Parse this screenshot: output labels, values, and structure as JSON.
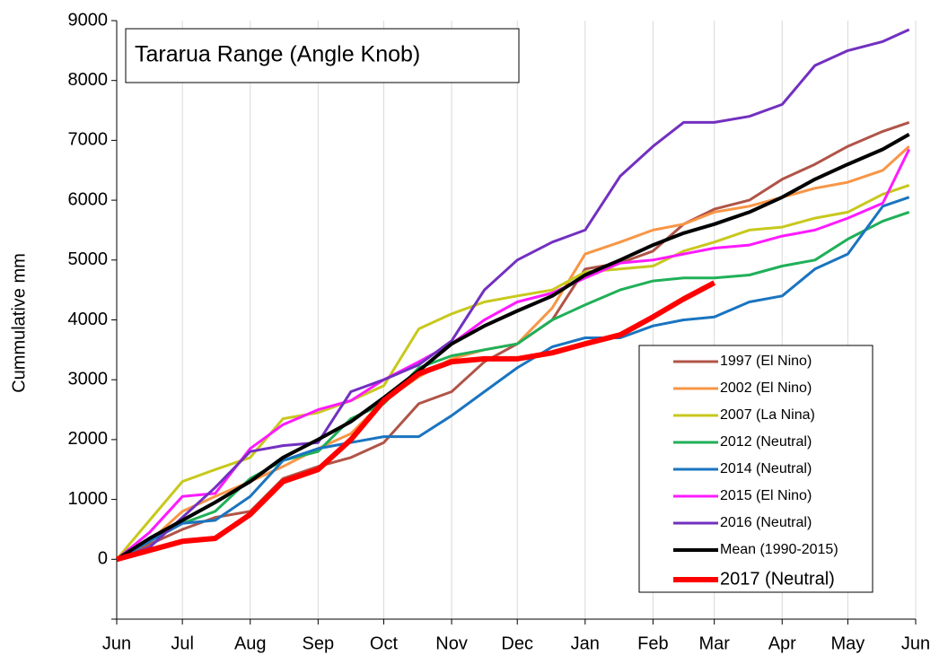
{
  "chart_data": {
    "type": "line",
    "title": "Tararua Range (Angle Knob)",
    "y_label": "Cummulative mm",
    "x": [
      0,
      15,
      30,
      45,
      61,
      76,
      92,
      107,
      122,
      138,
      153,
      168,
      183,
      199,
      214,
      230,
      245,
      259,
      273,
      289,
      304,
      319,
      334,
      350,
      362
    ],
    "xlim": [
      0,
      365
    ],
    "xticks": [
      {
        "value": 0,
        "label": "Jun"
      },
      {
        "value": 30,
        "label": "Jul"
      },
      {
        "value": 61,
        "label": "Aug"
      },
      {
        "value": 92,
        "label": "Sep"
      },
      {
        "value": 122,
        "label": "Oct"
      },
      {
        "value": 153,
        "label": "Nov"
      },
      {
        "value": 183,
        "label": "Dec"
      },
      {
        "value": 214,
        "label": "Jan"
      },
      {
        "value": 245,
        "label": "Feb"
      },
      {
        "value": 273,
        "label": "Mar"
      },
      {
        "value": 304,
        "label": "Apr"
      },
      {
        "value": 334,
        "label": "May"
      },
      {
        "value": 365,
        "label": "Jun"
      }
    ],
    "ylim": [
      -1000,
      9000
    ],
    "yticks": [
      0,
      1000,
      2000,
      3000,
      4000,
      5000,
      6000,
      7000,
      8000,
      9000
    ],
    "grid": "x",
    "legend": "lower right",
    "series": [
      {
        "name": "1997 (El Nino)",
        "color": "#b05448",
        "line_width": 3,
        "values": [
          0,
          250,
          500,
          700,
          800,
          1350,
          1550,
          1700,
          1950,
          2600,
          2800,
          3300,
          3600,
          4000,
          4850,
          4950,
          5150,
          5600,
          5850,
          6000,
          6350,
          6600,
          6900,
          7150,
          7300
        ]
      },
      {
        "name": "2002 (El Nino)",
        "color": "#f79646",
        "line_width": 3,
        "values": [
          0,
          300,
          800,
          1050,
          1300,
          1550,
          1850,
          2100,
          2650,
          3050,
          3350,
          3500,
          3600,
          4200,
          5100,
          5300,
          5500,
          5600,
          5800,
          5900,
          6050,
          6200,
          6300,
          6500,
          6900
        ]
      },
      {
        "name": "2007 (La Nina)",
        "color": "#c8c81e",
        "line_width": 3,
        "values": [
          0,
          650,
          1300,
          1500,
          1700,
          2350,
          2450,
          2650,
          2900,
          3850,
          4100,
          4300,
          4400,
          4500,
          4800,
          4850,
          4900,
          5150,
          5300,
          5500,
          5550,
          5700,
          5800,
          6100,
          6250
        ]
      },
      {
        "name": "2012 (Neutral)",
        "color": "#1fb058",
        "line_width": 3,
        "values": [
          0,
          300,
          600,
          800,
          1350,
          1650,
          1800,
          2350,
          2600,
          3200,
          3400,
          3500,
          3600,
          4000,
          4250,
          4500,
          4650,
          4700,
          4700,
          4750,
          4900,
          5000,
          5350,
          5650,
          5800
        ]
      },
      {
        "name": "2014 (Neutral)",
        "color": "#1a74c0",
        "line_width": 3,
        "values": [
          0,
          300,
          600,
          650,
          1050,
          1650,
          1850,
          1950,
          2050,
          2050,
          2400,
          2800,
          3200,
          3550,
          3700,
          3700,
          3900,
          4000,
          4050,
          4300,
          4400,
          4850,
          5100,
          5900,
          6050
        ]
      },
      {
        "name": "2015 (El Nino)",
        "color": "#ff1aff",
        "line_width": 3,
        "values": [
          0,
          450,
          1050,
          1100,
          1850,
          2250,
          2500,
          2650,
          3000,
          3300,
          3600,
          4000,
          4300,
          4450,
          4700,
          4950,
          5000,
          5100,
          5200,
          5250,
          5400,
          5500,
          5700,
          5950,
          6850
        ]
      },
      {
        "name": "2016 (Neutral)",
        "color": "#7230c0",
        "line_width": 3,
        "values": [
          0,
          200,
          700,
          1200,
          1800,
          1900,
          1950,
          2800,
          3000,
          3250,
          3650,
          4500,
          5000,
          5300,
          5500,
          6400,
          6900,
          7300,
          7300,
          7400,
          7600,
          8250,
          8500,
          8650,
          8850
        ]
      },
      {
        "name": "Mean (1990-2015)",
        "color": "#000000",
        "line_width": 4,
        "values": [
          0,
          350,
          650,
          950,
          1300,
          1700,
          2000,
          2300,
          2700,
          3150,
          3600,
          3900,
          4150,
          4400,
          4750,
          5000,
          5250,
          5450,
          5600,
          5800,
          6050,
          6350,
          6600,
          6850,
          7100
        ]
      },
      {
        "name": "2017 (Neutral)",
        "color": "#ff0000",
        "line_width": 6,
        "values": [
          0,
          150,
          300,
          350,
          750,
          1300,
          1500,
          2000,
          2650,
          3100,
          3300,
          3350,
          3350,
          3450,
          3600,
          3750,
          4050,
          4350,
          4620,
          null,
          null,
          null,
          null,
          null,
          null
        ]
      }
    ]
  }
}
